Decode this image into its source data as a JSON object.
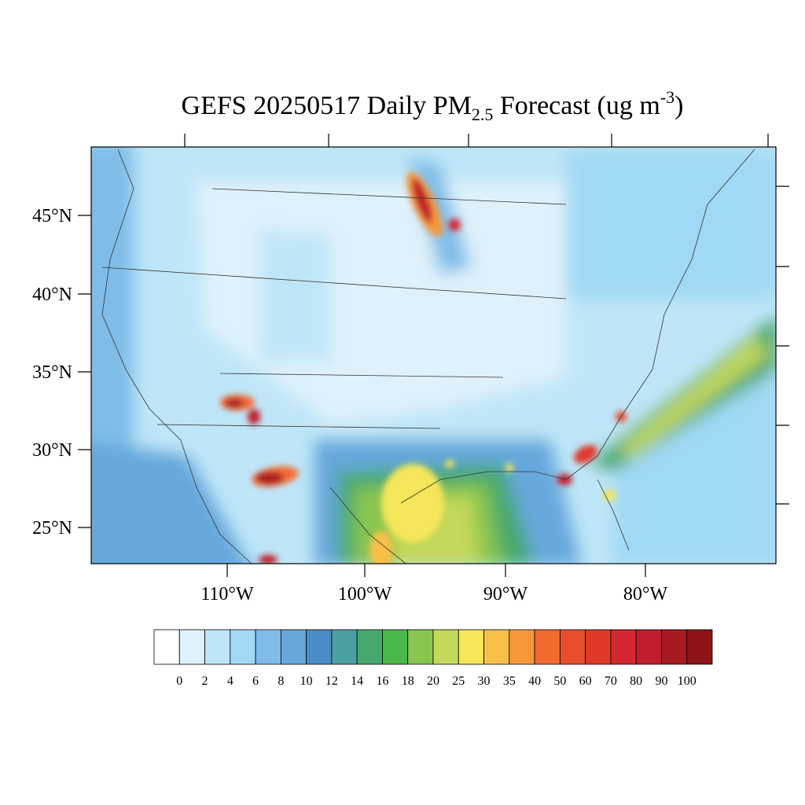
{
  "title": {
    "main": "GEFS 20250517 Daily PM",
    "sub": "2.5",
    "mid": " Forecast (ug m",
    "sup": "-3",
    "end": ")"
  },
  "map": {
    "lat_labels": [
      "45°N",
      "40°N",
      "35°N",
      "30°N",
      "25°N"
    ],
    "lon_labels": [
      "110°W",
      "100°W",
      "90°W",
      "80°W"
    ]
  },
  "colorbar": {
    "levels": [
      0,
      2,
      4,
      6,
      8,
      10,
      12,
      14,
      16,
      18,
      20,
      25,
      30,
      35,
      40,
      50,
      60,
      70,
      80,
      90,
      100
    ],
    "colors": [
      "#ffffff",
      "#dff2fb",
      "#bfe6f8",
      "#a0d9f5",
      "#7fbde8",
      "#66a8dc",
      "#4a8cc8",
      "#4a9fa0",
      "#46a86e",
      "#4ab848",
      "#88c650",
      "#c4d85a",
      "#f5e65a",
      "#f8c04a",
      "#f6983a",
      "#f26a30",
      "#e84e2c",
      "#e0392a",
      "#d42530",
      "#c01e2c",
      "#a81a22",
      "#8e1416"
    ]
  }
}
